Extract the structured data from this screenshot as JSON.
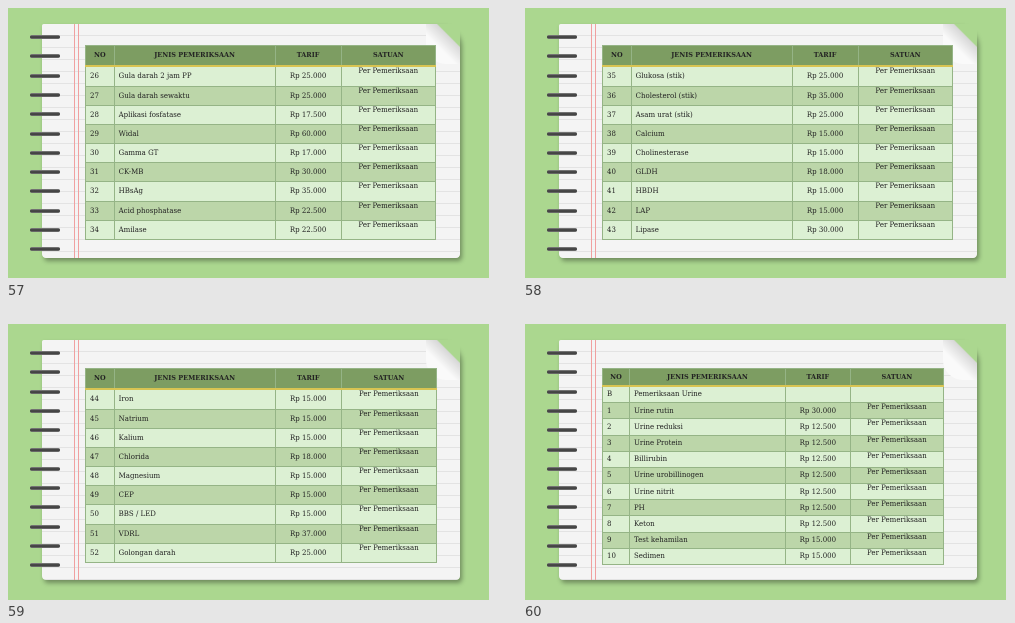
{
  "slides": [
    {
      "number": "57",
      "table": {
        "header": [
          "NO",
          "JENIS PEMERIKSAAN",
          "TARIF",
          "SATUAN"
        ],
        "rows": [
          [
            "26",
            "Gula darah 2 jam PP",
            "Rp 25.000",
            "Per Pemeriksaan"
          ],
          [
            "27",
            "Gula darah sewaktu",
            "Rp 25.000",
            "Per Pemeriksaan"
          ],
          [
            "28",
            "Aplikasi fosfatase",
            "Rp 17.500",
            "Per Pemeriksaan"
          ],
          [
            "29",
            "Widal",
            "Rp 60.000",
            "Per Pemeriksaan"
          ],
          [
            "30",
            "Gamma GT",
            "Rp 17.000",
            "Per Pemeriksaan"
          ],
          [
            "31",
            "CK-MB",
            "Rp 30.000",
            "Per Pemeriksaan"
          ],
          [
            "32",
            "HBsAg",
            "Rp 35.000",
            "Per Pemeriksaan"
          ],
          [
            "33",
            "Acid phosphatase",
            "Rp 22.500",
            "Per Pemeriksaan"
          ],
          [
            "34",
            "Amilase",
            "Rp 22.500",
            "Per Pemeriksaan"
          ]
        ]
      }
    },
    {
      "number": "58",
      "table": {
        "header": [
          "NO",
          "JENIS PEMERIKSAAN",
          "TARIF",
          "SATUAN"
        ],
        "rows": [
          [
            "35",
            "Glukosa (stik)",
            "Rp 25.000",
            "Per Pemeriksaan"
          ],
          [
            "36",
            "Cholesterol (stik)",
            "Rp 35.000",
            "Per Pemeriksaan"
          ],
          [
            "37",
            "Asam urat (stik)",
            "Rp 25.000",
            "Per Pemeriksaan"
          ],
          [
            "38",
            "Calcium",
            "Rp 15.000",
            "Per Pemeriksaan"
          ],
          [
            "39",
            "Cholinesterase",
            "Rp 15.000",
            "Per Pemeriksaan"
          ],
          [
            "40",
            "GLDH",
            "Rp 18.000",
            "Per Pemeriksaan"
          ],
          [
            "41",
            "HBDH",
            "Rp 15.000",
            "Per Pemeriksaan"
          ],
          [
            "42",
            "LAP",
            "Rp 15.000",
            "Per Pemeriksaan"
          ],
          [
            "43",
            "Lipase",
            "Rp 30.000",
            "Per Pemeriksaan"
          ]
        ]
      }
    },
    {
      "number": "59",
      "table": {
        "header": [
          "NO",
          "JENIS PEMERIKSAAN",
          "TARIF",
          "SATUAN"
        ],
        "rows": [
          [
            "44",
            "Iron",
            "Rp 15.000",
            "Per Pemeriksaan"
          ],
          [
            "45",
            "Natrium",
            "Rp 15.000",
            "Per Pemeriksaan"
          ],
          [
            "46",
            "Kalium",
            "Rp 15.000",
            "Per Pemeriksaan"
          ],
          [
            "47",
            "Chlorida",
            "Rp 18.000",
            "Per Pemeriksaan"
          ],
          [
            "48",
            "Magnesium",
            "Rp 15.000",
            "Per Pemeriksaan"
          ],
          [
            "49",
            "CEP",
            "Rp 15.000",
            "Per Pemeriksaan"
          ],
          [
            "50",
            "BBS / LED",
            "Rp 15.000",
            "Per Pemeriksaan"
          ],
          [
            "51",
            "VDRL",
            "Rp 37.000",
            "Per Pemeriksaan"
          ],
          [
            "52",
            "Golongan darah",
            "Rp  25.000",
            "Per Pemeriksaan"
          ]
        ]
      }
    },
    {
      "number": "60",
      "table": {
        "header": [
          "NO",
          "JENIS PEMERIKSAAN",
          "TARIF",
          "SATUAN"
        ],
        "rows": [
          [
            "B",
            "Pemeriksaan Urine"
          ],
          [
            "1",
            "Urine rutin",
            "Rp 30.000",
            "Per Pemeriksaan"
          ],
          [
            "2",
            "Urine reduksi",
            "Rp 12.500",
            "Per Pemeriksaan"
          ],
          [
            "3",
            "Urine Protein",
            "Rp 12.500",
            "Per Pemeriksaan"
          ],
          [
            "4",
            "Billirubin",
            "Rp 12.500",
            "Per Pemeriksaan"
          ],
          [
            "5",
            "Urine urobillinogen",
            "Rp 12.500",
            "Per Pemeriksaan"
          ],
          [
            "6",
            "Urine nitrit",
            "Rp 12.500",
            "Per Pemeriksaan"
          ],
          [
            "7",
            "PH",
            "Rp 12.500",
            "Per Pemeriksaan"
          ],
          [
            "8",
            "Keton",
            "Rp 12.500",
            "Per Pemeriksaan"
          ],
          [
            "9",
            "Test kehamilan",
            "Rp 15.000",
            "Per Pemeriksaan"
          ],
          [
            "10",
            "Sedimen",
            "Rp 15.000",
            "Per Pemeriksaan"
          ]
        ]
      }
    }
  ]
}
